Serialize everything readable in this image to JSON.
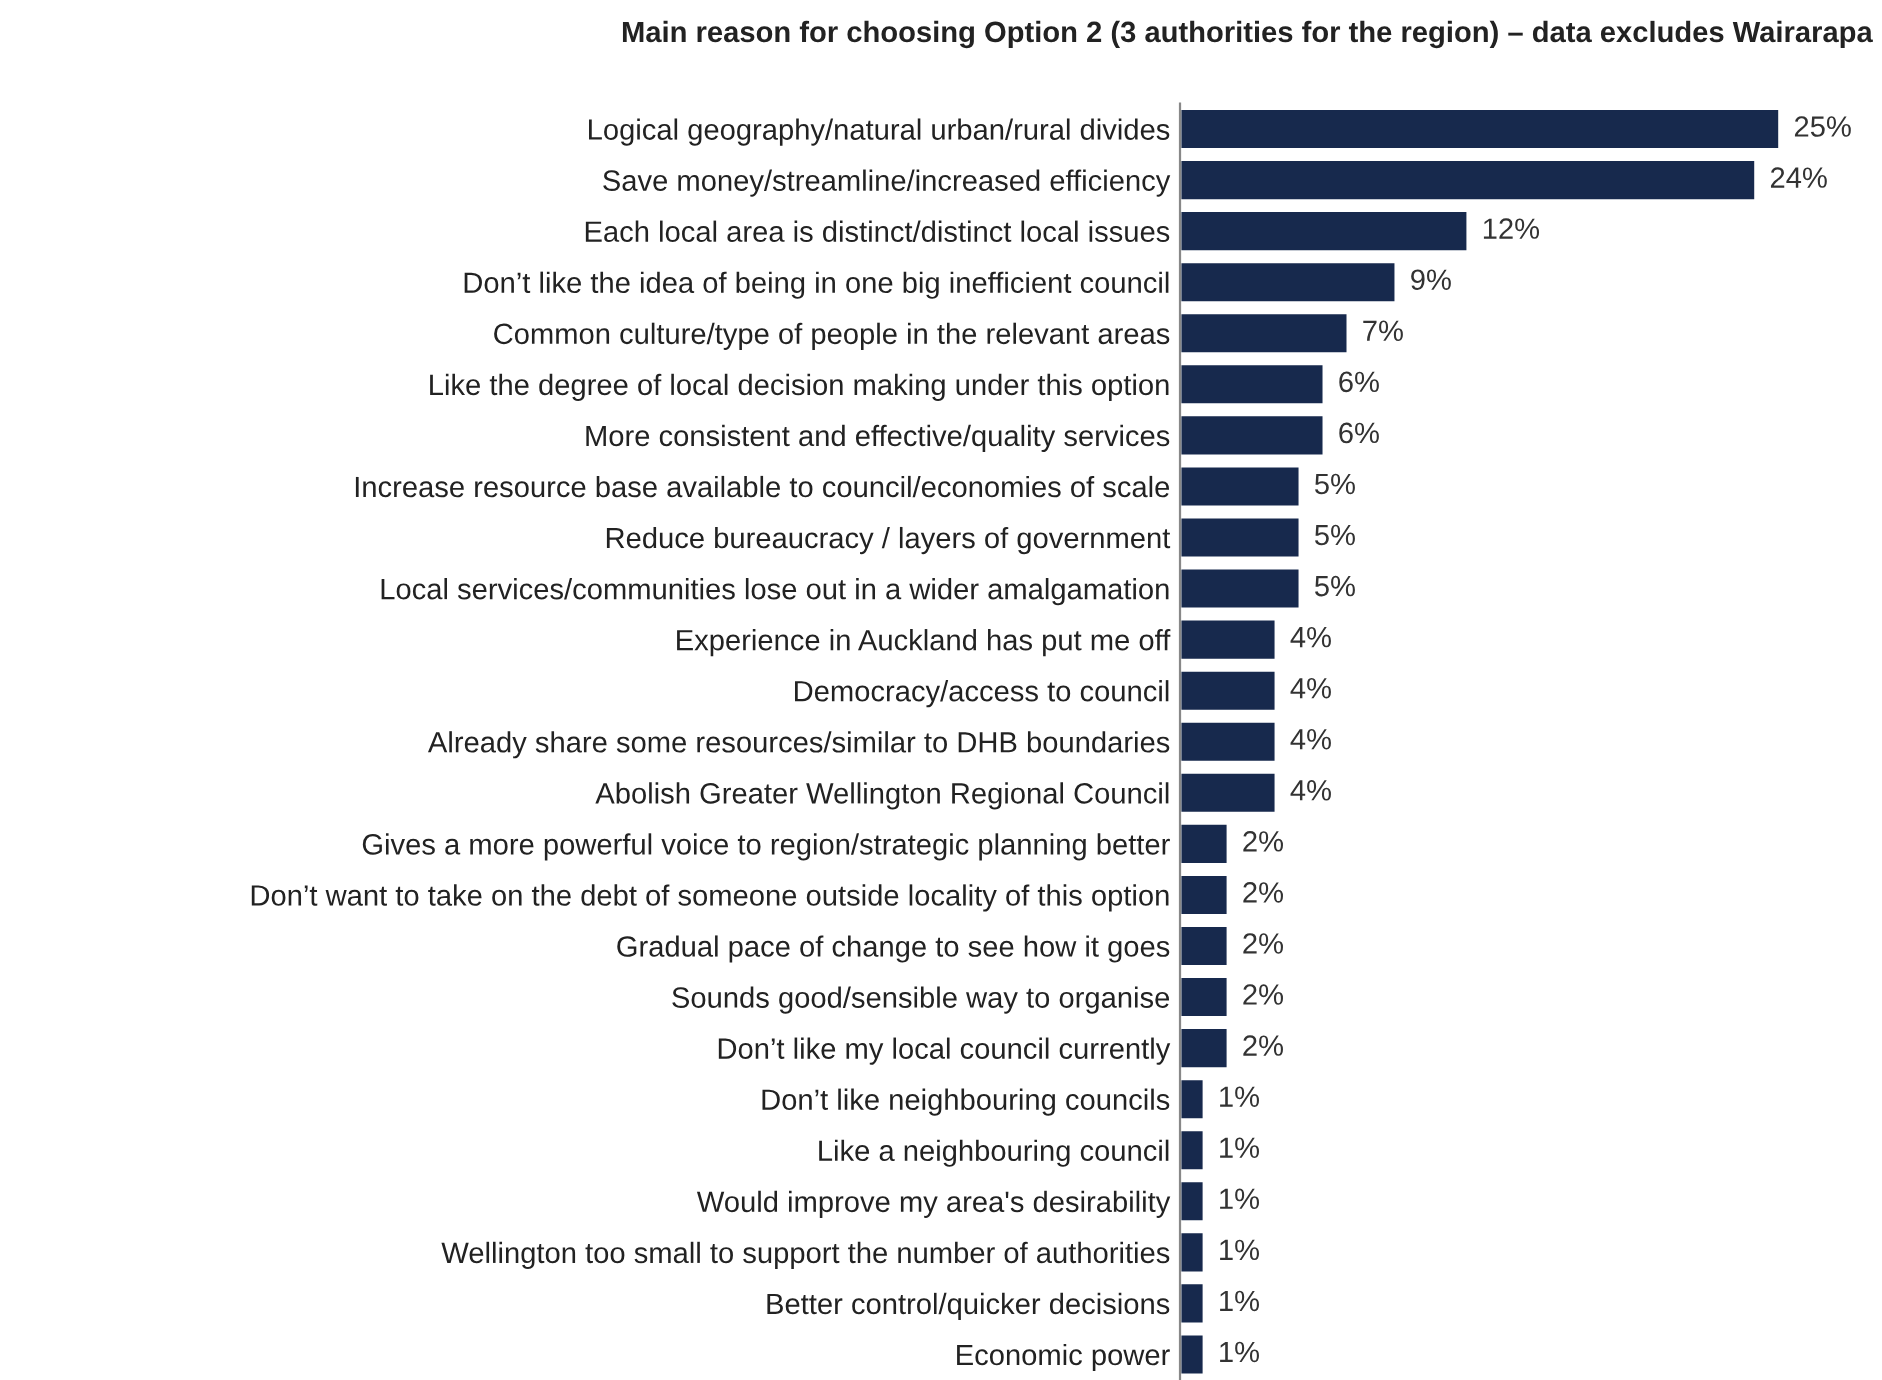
{
  "chart_data": {
    "type": "bar",
    "orientation": "horizontal",
    "title": "Main reason for choosing Option 2 (3 authorities for the region) – data excludes Wairarapa",
    "categories": [
      "Logical geography/natural urban/rural divides",
      "Save money/streamline/increased efficiency",
      "Each local area is distinct/distinct local issues",
      "Don’t like the idea of being in one big inefficient council",
      "Common culture/type of people in the relevant areas",
      "Like the degree of local decision making under this option",
      "More consistent and effective/quality services",
      "Increase resource base available to council/economies of scale",
      "Reduce bureaucracy / layers of government",
      "Local services/communities lose out in a wider amalgamation",
      "Experience in Auckland has put me off",
      "Democracy/access to council",
      "Already share some resources/similar to DHB boundaries",
      "Abolish Greater Wellington Regional Council",
      "Gives a more powerful voice to region/strategic planning better",
      "Don’t want to take on the debt of someone outside locality of this option",
      "Gradual pace of change to see how it goes",
      "Sounds good/sensible way to organise",
      "Don’t like my local council currently",
      "Don’t like neighbouring councils",
      "Like a neighbouring council",
      "Would improve my area's desirability",
      "Wellington too small to support the number of authorities",
      "Better control/quicker decisions",
      "Economic power"
    ],
    "values": [
      25,
      24,
      12,
      9,
      7,
      6,
      6,
      5,
      5,
      5,
      4,
      4,
      4,
      4,
      2,
      2,
      2,
      2,
      2,
      1,
      1,
      1,
      1,
      1,
      1
    ],
    "value_labels": [
      "25%",
      "24%",
      "12%",
      "9%",
      "7%",
      "6%",
      "6%",
      "5%",
      "5%",
      "5%",
      "4%",
      "4%",
      "4%",
      "4%",
      "2%",
      "2%",
      "2%",
      "2%",
      "2%",
      "1%",
      "1%",
      "1%",
      "1%",
      "1%",
      "1%"
    ],
    "color": "#17294d",
    "grid": false,
    "legend": false,
    "tick_labels": "y"
  }
}
